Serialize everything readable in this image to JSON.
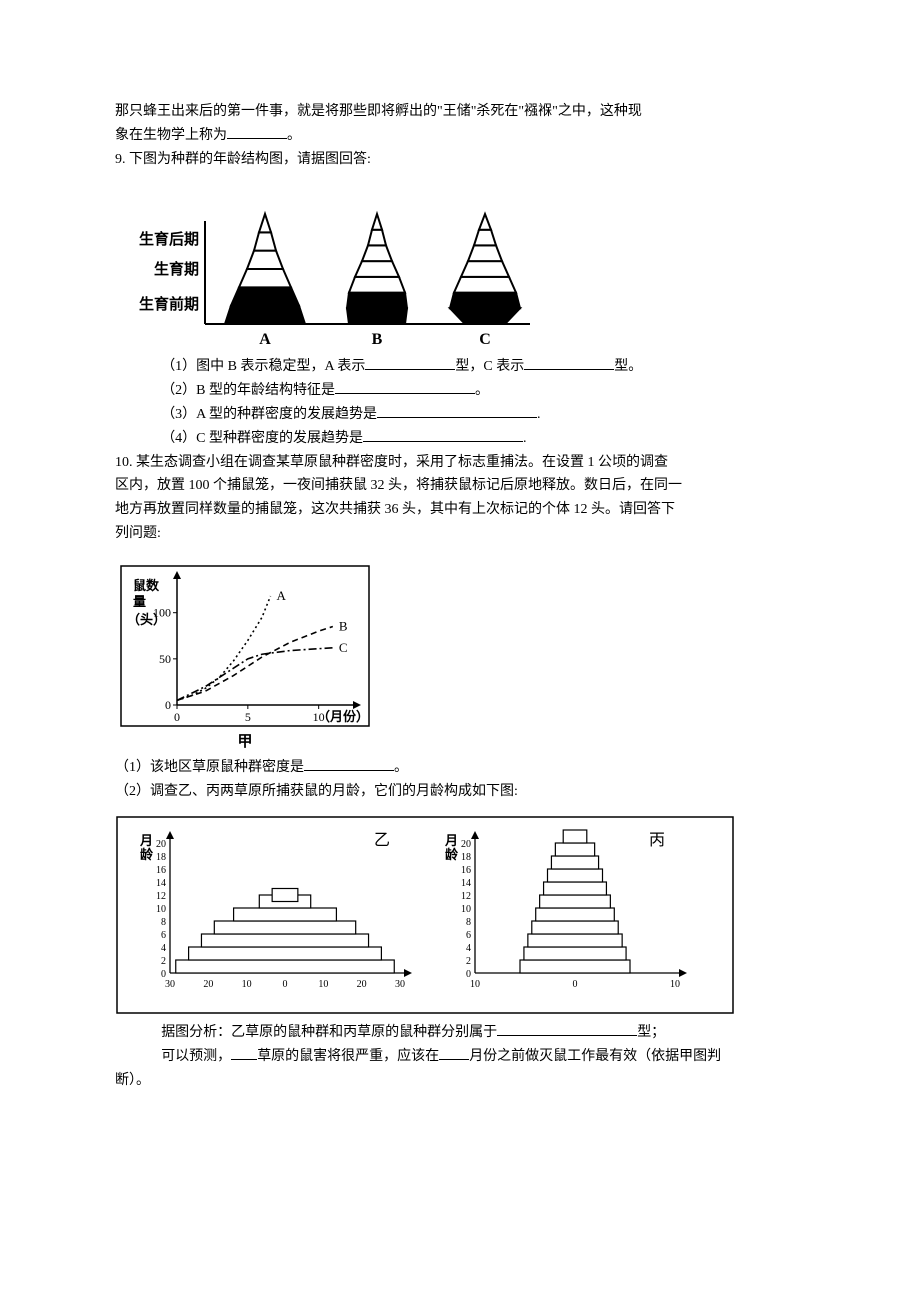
{
  "intro": {
    "line1": "那只蜂王出来后的第一件事，就是将那些即将孵出的\"王储\"杀死在\"襁褓\"之中，这种现",
    "line2_a": "象在生物学上称为",
    "line2_b": "。"
  },
  "q9": {
    "prompt": "9.  下图为种群的年龄结构图，请据图回答:",
    "axis_labels": [
      "生育后期",
      "生育期",
      "生育前期"
    ],
    "col_labels": [
      "A",
      "B",
      "C"
    ],
    "sub1_a": "（1）图中 B 表示稳定型，A 表示",
    "sub1_b": "型，C 表示",
    "sub1_c": "型。",
    "sub2_a": "（2）B 型的年龄结构特征是",
    "sub2_b": "。",
    "sub3_a": "（3）A 型的种群密度的发展趋势是",
    "sub3_b": ".",
    "sub4_a": "（4）C 型种群密度的发展趋势是",
    "sub4_b": ".",
    "fig": {
      "axis_fontsize": 15,
      "col_label_fontsize": 16,
      "stroke": "#000000",
      "fill_dark": "#000000",
      "fill_light": "#ffffff",
      "line_width": 2,
      "A_widths": [
        80,
        68,
        52,
        36,
        22,
        12
      ],
      "B_widths": [
        56,
        60,
        56,
        44,
        30,
        18,
        10
      ],
      "C_widths": [
        40,
        70,
        62,
        48,
        34,
        22,
        12
      ]
    }
  },
  "q10": {
    "p1": "10.  某生态调查小组在调查某草原鼠种群密度时，采用了标志重捕法。在设置 1 公顷的调查",
    "p2": "区内，放置 100 个捕鼠笼，一夜间捕获鼠 32 头，将捕获鼠标记后原地释放。数日后，在同一",
    "p3": "地方再放置同样数量的捕鼠笼，这次共捕获 36 头，其中有上次标记的个体 12 头。请回答下",
    "p4": "列问题:",
    "chart_jia": {
      "y_label_l1": "鼠数",
      "y_label_l2": "量",
      "y_label_l3": "（头）",
      "x_label": "（月份）",
      "caption": "甲",
      "xlim": [
        0,
        12
      ],
      "ylim": [
        0,
        130
      ],
      "xticks": [
        0,
        5,
        10
      ],
      "yticks": [
        0,
        50,
        100
      ],
      "axis_color": "#000000",
      "series": {
        "A": {
          "label": "A",
          "style": "dotted",
          "points": [
            [
              0,
              5
            ],
            [
              1,
              10
            ],
            [
              2,
              18
            ],
            [
              3,
              30
            ],
            [
              4,
              48
            ],
            [
              5,
              70
            ],
            [
              6,
              95
            ],
            [
              6.6,
              118
            ]
          ]
        },
        "B": {
          "label": "B",
          "style": "dashed",
          "points": [
            [
              0,
              5
            ],
            [
              2,
              15
            ],
            [
              4,
              32
            ],
            [
              6,
              52
            ],
            [
              8,
              68
            ],
            [
              10,
              80
            ],
            [
              11,
              85
            ]
          ]
        },
        "C": {
          "label": "C",
          "style": "dashdot",
          "points": [
            [
              0,
              5
            ],
            [
              2,
              20
            ],
            [
              4,
              40
            ],
            [
              5,
              50
            ],
            [
              6,
              55
            ],
            [
              8,
              59
            ],
            [
              10,
              61
            ],
            [
              11,
              62
            ]
          ]
        }
      }
    },
    "sub1_a": "（1）该地区草原鼠种群密度是",
    "sub1_b": "。",
    "sub2": "（2）调查乙、丙两草原所捕获鼠的月龄，它们的月龄构成如下图:",
    "pyramids": {
      "y_label": "月龄",
      "y_ticks": [
        0,
        2,
        4,
        6,
        8,
        10,
        12,
        14,
        16,
        18,
        20
      ],
      "yi": {
        "label": "乙",
        "x_ticks": [
          30,
          20,
          10,
          0,
          10,
          20,
          30
        ],
        "half_widths": [
          34,
          30,
          26,
          22,
          16,
          8,
          0,
          0,
          0,
          0,
          0
        ],
        "top_box_at": 11,
        "top_box_halfwidth": 4
      },
      "bing": {
        "label": "丙",
        "x_ticks": [
          10,
          0,
          10
        ],
        "half_widths": [
          14,
          13,
          12,
          11,
          10,
          9,
          8,
          7,
          6,
          5,
          0
        ],
        "top_box_at": 20,
        "top_box_halfwidth": 3
      },
      "stroke": "#000000",
      "fill": "#ffffff"
    },
    "concl1_a": "据图分析：乙草原的鼠种群和丙草原的鼠种群分别属于",
    "concl1_b": "型；",
    "concl2_a": "可以预测，",
    "concl2_b": "草原的鼠害将很严重，应该在",
    "concl2_c": "月份之前做灭鼠工作最有效（依据甲图判",
    "concl3": "断）。"
  }
}
